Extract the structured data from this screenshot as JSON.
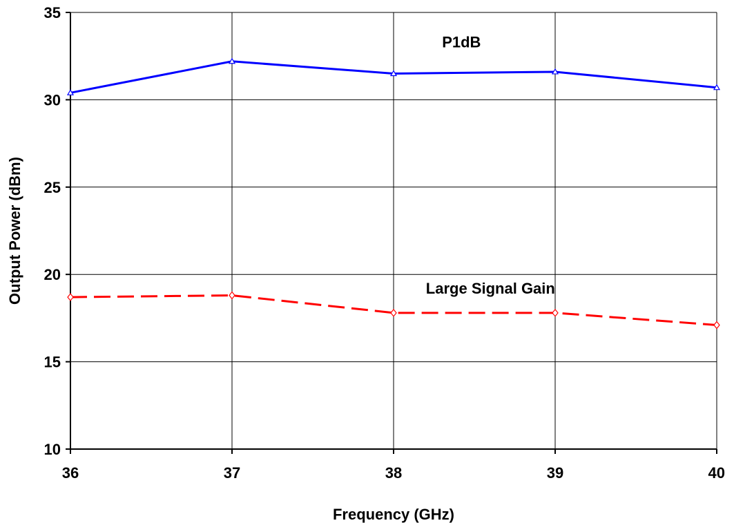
{
  "chart_data": {
    "type": "line",
    "title": "",
    "xlabel": "Frequency (GHz)",
    "ylabel": "Output Power (dBm)",
    "x": [
      36,
      37,
      38,
      39,
      40
    ],
    "xlim": [
      36,
      40
    ],
    "ylim": [
      10,
      35
    ],
    "x_ticks": [
      "36",
      "37",
      "38",
      "39",
      "40"
    ],
    "y_ticks": [
      "10",
      "15",
      "20",
      "25",
      "30",
      "35"
    ],
    "grid": true,
    "legend": "none",
    "series": [
      {
        "values": [
          30.4,
          32.2,
          31.5,
          31.6,
          30.7
        ],
        "color": "#0000ff",
        "style": "solid",
        "marker": "triangle-open"
      },
      {
        "values": [
          18.7,
          18.8,
          17.8,
          17.8,
          17.1
        ],
        "color": "#ff0000",
        "style": "dashed",
        "marker": "diamond-open"
      }
    ],
    "annotations": [
      {
        "text": "P1dB",
        "x": 38.3,
        "y": 33.0
      },
      {
        "text": "Large Signal Gain",
        "x": 38.2,
        "y": 18.9
      }
    ]
  }
}
